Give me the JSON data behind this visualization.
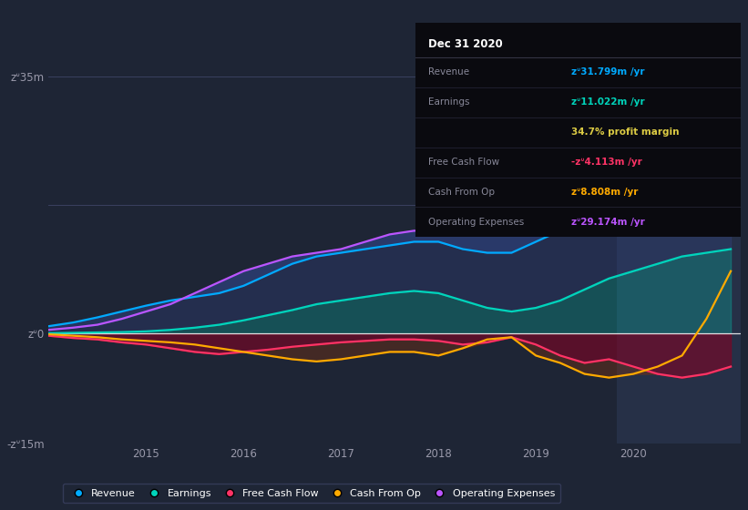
{
  "background_color": "#1e2535",
  "highlight_color": "#242d45",
  "ylim": [
    -15,
    35
  ],
  "xlim_start": 2014.0,
  "xlim_end": 2021.1,
  "years": [
    2014.0,
    2014.25,
    2014.5,
    2014.75,
    2015.0,
    2015.25,
    2015.5,
    2015.75,
    2016.0,
    2016.25,
    2016.5,
    2016.75,
    2017.0,
    2017.25,
    2017.5,
    2017.75,
    2018.0,
    2018.25,
    2018.5,
    2018.75,
    2019.0,
    2019.25,
    2019.5,
    2019.75,
    2020.0,
    2020.25,
    2020.5,
    2020.75,
    2021.0
  ],
  "revenue": [
    1.0,
    1.5,
    2.2,
    3.0,
    3.8,
    4.5,
    5.0,
    5.5,
    6.5,
    8.0,
    9.5,
    10.5,
    11.0,
    11.5,
    12.0,
    12.5,
    12.5,
    11.5,
    11.0,
    11.0,
    12.5,
    14.0,
    16.0,
    18.0,
    21.0,
    26.0,
    30.0,
    33.0,
    35.0
  ],
  "operating_expenses": [
    0.5,
    0.8,
    1.2,
    2.0,
    3.0,
    4.0,
    5.5,
    7.0,
    8.5,
    9.5,
    10.5,
    11.0,
    11.5,
    12.5,
    13.5,
    14.0,
    14.0,
    13.5,
    13.5,
    13.5,
    15.0,
    17.0,
    19.5,
    22.0,
    25.0,
    27.5,
    29.5,
    30.5,
    31.5
  ],
  "earnings": [
    0.05,
    0.1,
    0.15,
    0.2,
    0.3,
    0.5,
    0.8,
    1.2,
    1.8,
    2.5,
    3.2,
    4.0,
    4.5,
    5.0,
    5.5,
    5.8,
    5.5,
    4.5,
    3.5,
    3.0,
    3.5,
    4.5,
    6.0,
    7.5,
    8.5,
    9.5,
    10.5,
    11.0,
    11.5
  ],
  "free_cash_flow": [
    -0.3,
    -0.6,
    -0.8,
    -1.2,
    -1.5,
    -2.0,
    -2.5,
    -2.8,
    -2.5,
    -2.2,
    -1.8,
    -1.5,
    -1.2,
    -1.0,
    -0.8,
    -0.8,
    -1.0,
    -1.5,
    -1.2,
    -0.5,
    -1.5,
    -3.0,
    -4.0,
    -3.5,
    -4.5,
    -5.5,
    -6.0,
    -5.5,
    -4.5
  ],
  "cash_from_op": [
    -0.1,
    -0.3,
    -0.5,
    -0.8,
    -1.0,
    -1.2,
    -1.5,
    -2.0,
    -2.5,
    -3.0,
    -3.5,
    -3.8,
    -3.5,
    -3.0,
    -2.5,
    -2.5,
    -3.0,
    -2.0,
    -0.8,
    -0.5,
    -3.0,
    -4.0,
    -5.5,
    -6.0,
    -5.5,
    -4.5,
    -3.0,
    2.0,
    8.5
  ],
  "revenue_color": "#00aaff",
  "earnings_color": "#00d4bb",
  "fcf_color": "#ff3366",
  "cash_from_op_color": "#ffaa00",
  "opex_color": "#bb55ff",
  "tooltip": {
    "title": "Dec 31 2020",
    "rows": [
      {
        "label": "Revenue",
        "value": "zᐡ31.799m /yr",
        "value_color": "#00aaff",
        "label_color": "#888899"
      },
      {
        "label": "Earnings",
        "value": "zᐡ11.022m /yr",
        "value_color": "#00d4bb",
        "label_color": "#888899"
      },
      {
        "label": "",
        "value": "34.7% profit margin",
        "value_color": "#ddcc44",
        "label_color": "#888899"
      },
      {
        "label": "Free Cash Flow",
        "value": "-zᐡ4.113m /yr",
        "value_color": "#ff3366",
        "label_color": "#888899"
      },
      {
        "label": "Cash From Op",
        "value": "zᐡ8.808m /yr",
        "value_color": "#ffaa00",
        "label_color": "#888899"
      },
      {
        "label": "Operating Expenses",
        "value": "zᐡ29.174m /yr",
        "value_color": "#bb55ff",
        "label_color": "#888899"
      }
    ]
  }
}
